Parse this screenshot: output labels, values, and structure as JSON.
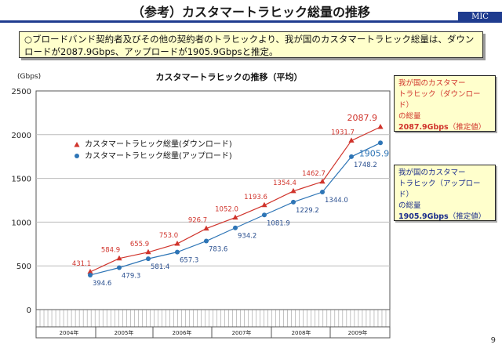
{
  "slide": {
    "title": "（参考）カスタマートラヒック総量の推移",
    "badge": "MIC",
    "summary": "○ブロードバンド契約者及びその他の契約者のトラヒックより、我が国のカスタマートラヒック総量は、ダウンロードが2087.9Gbps、アップロードが1905.9Gbpsと推定。",
    "page_number": "9"
  },
  "callouts": {
    "down": {
      "line1": "我が国のカスタマー",
      "line2": "トラヒック（ダウンロード）",
      "line3": "の総量",
      "value": "2087.9Gbps",
      "note": "（推定値）"
    },
    "up": {
      "line1": "我が国のカスタマー",
      "line2": "トラヒック（アップロード）",
      "line3": "の総量",
      "value": "1905.9Gbps",
      "note": "（推定値）"
    }
  },
  "colors": {
    "down": "#d0342c",
    "up": "#2e75b6",
    "accent": "#1f3c8f"
  },
  "chart_data": {
    "type": "line",
    "title": "カスタマートラヒックの推移（平均）",
    "ylabel": "(Gbps)",
    "ylim": [
      0,
      2500
    ],
    "yticks": [
      0,
      500,
      1000,
      1500,
      2000,
      2500
    ],
    "year_labels": [
      "2004年",
      "2005年",
      "2006年",
      "2007年",
      "2008年",
      "2009年"
    ],
    "series": [
      {
        "name": "カスタマートラヒック総量(ダウンロード)",
        "labels": [
          "431.1",
          "584.9",
          "655.9",
          "753.0",
          "926.7",
          "1052.0",
          "1193.6",
          "1354.4",
          "1462.7",
          "1931.7",
          "2087.9"
        ],
        "values": [
          431.1,
          584.9,
          655.9,
          753.0,
          926.7,
          1052.0,
          1193.6,
          1354.4,
          1462.7,
          1931.7,
          2087.9
        ]
      },
      {
        "name": "カスタマートラヒック総量(アップロード)",
        "labels": [
          "394.6",
          "479.3",
          "581.4",
          "657.3",
          "783.6",
          "934.2",
          "1081.9",
          "1229.2",
          "1344.0",
          "1748.2",
          "1905.9"
        ],
        "values": [
          394.6,
          479.3,
          581.4,
          657.3,
          783.6,
          934.2,
          1081.9,
          1229.2,
          1344.0,
          1748.2,
          1905.9
        ]
      }
    ]
  }
}
